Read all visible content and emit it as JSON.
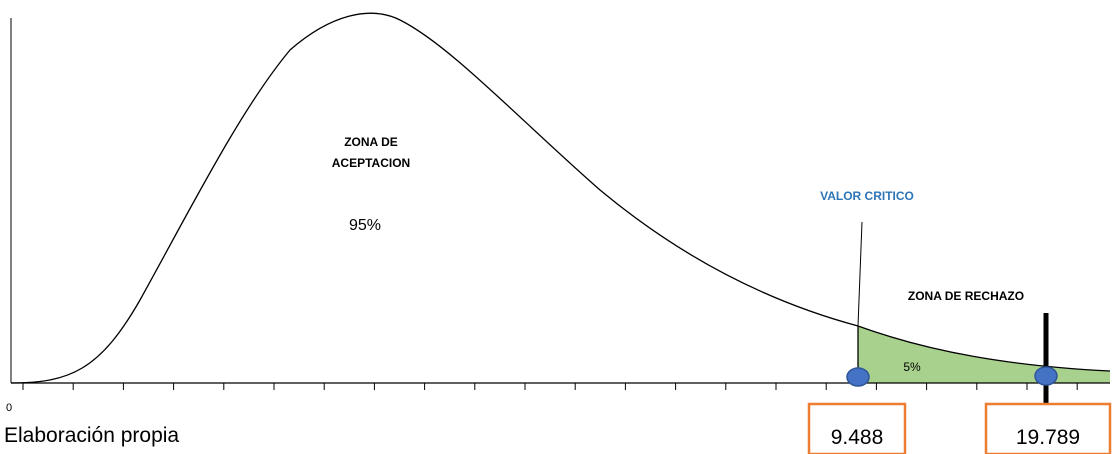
{
  "labels": {
    "acceptance_zone_line1": "ZONA DE",
    "acceptance_zone_line2": "ACEPTACION",
    "acceptance_percent": "95%",
    "critical_value_label": "VALOR CRITICO",
    "rejection_zone": "ZONA DE RECHAZO",
    "rejection_percent": "5%",
    "origin": "0",
    "caption": "Elaboración propia"
  },
  "values": {
    "critical_value": "9.488",
    "test_statistic": "19.789"
  },
  "colors": {
    "curve": "#000000",
    "rejection_fill": "#A9D18E",
    "marker": "#4472C4",
    "marker_border": "#2F5597",
    "box_border": "#ED7D31",
    "critical_label": "#2E75B6"
  }
}
